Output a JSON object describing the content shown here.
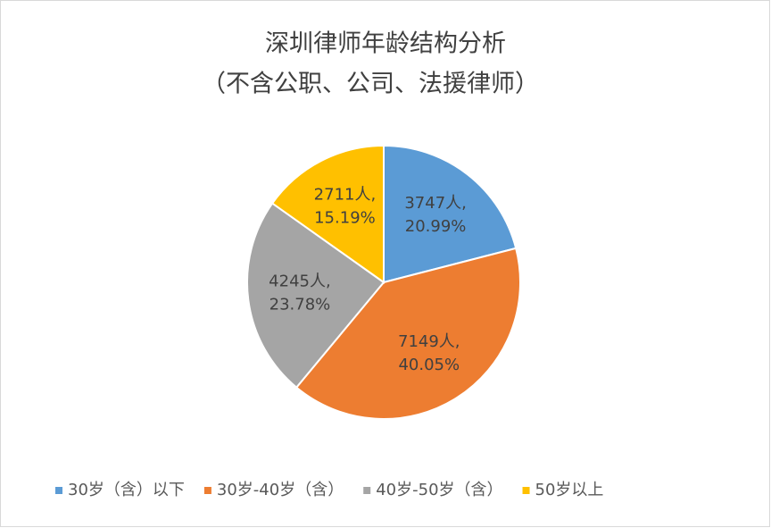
{
  "chart_data": {
    "type": "pie",
    "title": "深圳律师年龄结构分析",
    "subtitle": "（不含公职、公司、法援律师）",
    "categories": [
      "30岁（含）以下",
      "30岁-40岁（含）",
      "40岁-50岁（含）",
      "50岁以上"
    ],
    "values": [
      3747,
      7149,
      4245,
      2711
    ],
    "value_labels": [
      "3747人,",
      "7149人,",
      "4245人,",
      "2711人,"
    ],
    "percentages": [
      20.99,
      40.05,
      23.78,
      15.19
    ],
    "percentage_labels": [
      "20.99%",
      "40.05%",
      "23.78%",
      "15.19%"
    ],
    "colors": [
      "#5b9bd5",
      "#ed7d31",
      "#a5a5a5",
      "#ffc000"
    ],
    "legend": "bottom"
  }
}
